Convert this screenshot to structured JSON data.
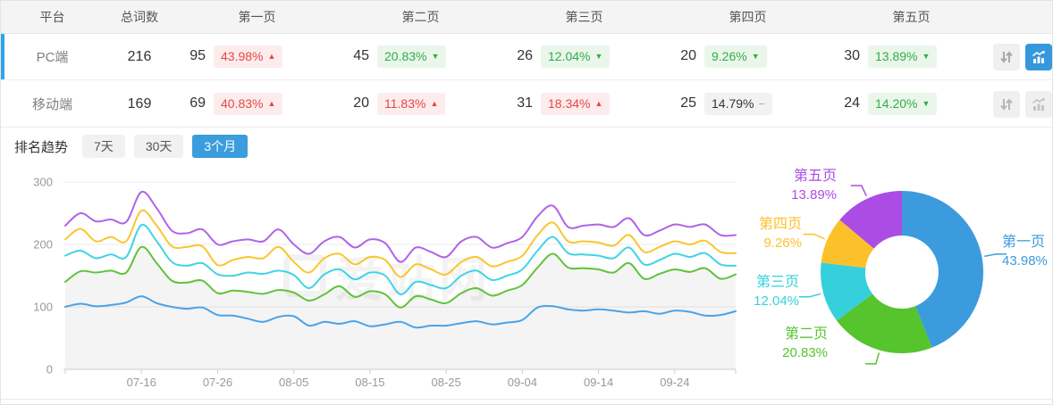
{
  "table": {
    "headers": {
      "platform": "平台",
      "total": "总词数",
      "pages": [
        "第一页",
        "第二页",
        "第三页",
        "第四页",
        "第五页"
      ]
    },
    "rows": [
      {
        "platform": "PC端",
        "total": "216",
        "selected": true,
        "chart_active": true,
        "pages": [
          {
            "count": "95",
            "pct": "43.98%",
            "trend": "up"
          },
          {
            "count": "45",
            "pct": "20.83%",
            "trend": "down"
          },
          {
            "count": "26",
            "pct": "12.04%",
            "trend": "down"
          },
          {
            "count": "20",
            "pct": "9.26%",
            "trend": "down"
          },
          {
            "count": "30",
            "pct": "13.89%",
            "trend": "down"
          }
        ]
      },
      {
        "platform": "移动端",
        "total": "169",
        "selected": false,
        "chart_active": false,
        "pages": [
          {
            "count": "69",
            "pct": "40.83%",
            "trend": "up"
          },
          {
            "count": "20",
            "pct": "11.83%",
            "trend": "up"
          },
          {
            "count": "31",
            "pct": "18.34%",
            "trend": "up"
          },
          {
            "count": "25",
            "pct": "14.79%",
            "trend": "flat"
          },
          {
            "count": "24",
            "pct": "14.20%",
            "trend": "down"
          }
        ]
      }
    ]
  },
  "icons": {
    "up": "▲",
    "down": "▼",
    "flat": "−",
    "sort_button": "up-down-arrows-icon",
    "chart_button": "bar-chart-trend-icon"
  },
  "trend": {
    "label": "排名趋势",
    "tabs": [
      "7天",
      "30天",
      "3个月"
    ],
    "active_tab": "3个月"
  },
  "watermark": "爱站网",
  "colors": {
    "accent_blue": "#3b9ddd",
    "row_indicator": "#32a3ea",
    "header_bg": "#f4f4f4",
    "badge_up_text": "#e64646",
    "badge_up_bg": "#fdecec",
    "badge_down_text": "#2fae49",
    "badge_down_bg": "#eaf6ea",
    "badge_flat_text": "#333333",
    "badge_flat_bg": "#f2f2f2",
    "axis_text": "#999999",
    "grid_line": "#ebebeb",
    "area_fill": "rgba(0,0,0,0.045)"
  },
  "chart_data": [
    {
      "type": "line",
      "title": "排名趋势 (3个月)",
      "x_tick_labels": [
        "07-16",
        "07-26",
        "08-05",
        "08-15",
        "08-25",
        "09-04",
        "09-14",
        "09-24"
      ],
      "x_tick_days": [
        10,
        20,
        30,
        40,
        50,
        60,
        70,
        80
      ],
      "x_start_day": 0,
      "x_step_days": 2,
      "x_range_days": [
        0,
        88
      ],
      "ylim": [
        0,
        300
      ],
      "y_ticks": [
        0,
        100,
        200,
        300
      ],
      "grid": true,
      "legend": false,
      "smooth": true,
      "series": [
        {
          "name": "purple",
          "color": "#b163e8",
          "area": false,
          "values": [
            230,
            250,
            237,
            240,
            236,
            284,
            258,
            222,
            218,
            224,
            200,
            205,
            208,
            205,
            224,
            200,
            185,
            205,
            212,
            195,
            208,
            202,
            172,
            195,
            188,
            180,
            205,
            212,
            195,
            202,
            212,
            245,
            262,
            228,
            230,
            232,
            228,
            242,
            215,
            222,
            232,
            228,
            232,
            215,
            215
          ]
        },
        {
          "name": "yellow",
          "color": "#f9c62e",
          "area": false,
          "values": [
            208,
            225,
            205,
            212,
            205,
            254,
            230,
            197,
            196,
            197,
            167,
            175,
            180,
            178,
            196,
            172,
            155,
            178,
            185,
            168,
            180,
            175,
            148,
            168,
            160,
            152,
            172,
            180,
            165,
            172,
            182,
            215,
            235,
            205,
            205,
            203,
            198,
            215,
            188,
            196,
            205,
            200,
            206,
            188,
            186
          ]
        },
        {
          "name": "cyan",
          "color": "#3fd4e4",
          "area": false,
          "values": [
            182,
            190,
            178,
            184,
            180,
            231,
            205,
            172,
            166,
            170,
            152,
            150,
            155,
            153,
            158,
            151,
            130,
            152,
            160,
            144,
            155,
            150,
            120,
            140,
            135,
            130,
            150,
            158,
            143,
            150,
            160,
            190,
            212,
            186,
            184,
            182,
            178,
            195,
            168,
            175,
            185,
            180,
            186,
            168,
            166
          ]
        },
        {
          "name": "green",
          "color": "#61c23c",
          "area": true,
          "values": [
            140,
            157,
            155,
            158,
            155,
            196,
            170,
            142,
            139,
            142,
            122,
            126,
            124,
            121,
            127,
            123,
            110,
            120,
            133,
            116,
            125,
            120,
            99,
            117,
            112,
            106,
            122,
            130,
            118,
            126,
            135,
            163,
            185,
            163,
            162,
            160,
            155,
            170,
            145,
            153,
            160,
            156,
            162,
            145,
            152
          ]
        },
        {
          "name": "blue",
          "color": "#4ba2e8",
          "area": false,
          "values": [
            100,
            105,
            101,
            103,
            107,
            117,
            106,
            100,
            97,
            99,
            87,
            86,
            81,
            76,
            84,
            85,
            70,
            76,
            73,
            77,
            69,
            72,
            76,
            67,
            70,
            70,
            74,
            77,
            72,
            75,
            79,
            99,
            101,
            96,
            94,
            96,
            94,
            91,
            93,
            89,
            94,
            92,
            86,
            87,
            93
          ]
        }
      ]
    },
    {
      "type": "pie",
      "donut": true,
      "hole_ratio": 0.45,
      "legend": false,
      "slices": [
        {
          "label": "第一页",
          "value": 43.98,
          "display": "43.98%",
          "color": "#3b9bdc"
        },
        {
          "label": "第二页",
          "value": 20.83,
          "display": "20.83%",
          "color": "#55c42d"
        },
        {
          "label": "第三页",
          "value": 12.04,
          "display": "12.04%",
          "color": "#36d0dc"
        },
        {
          "label": "第四页",
          "value": 9.26,
          "display": "9.26%",
          "color": "#fcc12a"
        },
        {
          "label": "第五页",
          "value": 13.89,
          "display": "13.89%",
          "color": "#ab4ce4"
        }
      ]
    }
  ]
}
